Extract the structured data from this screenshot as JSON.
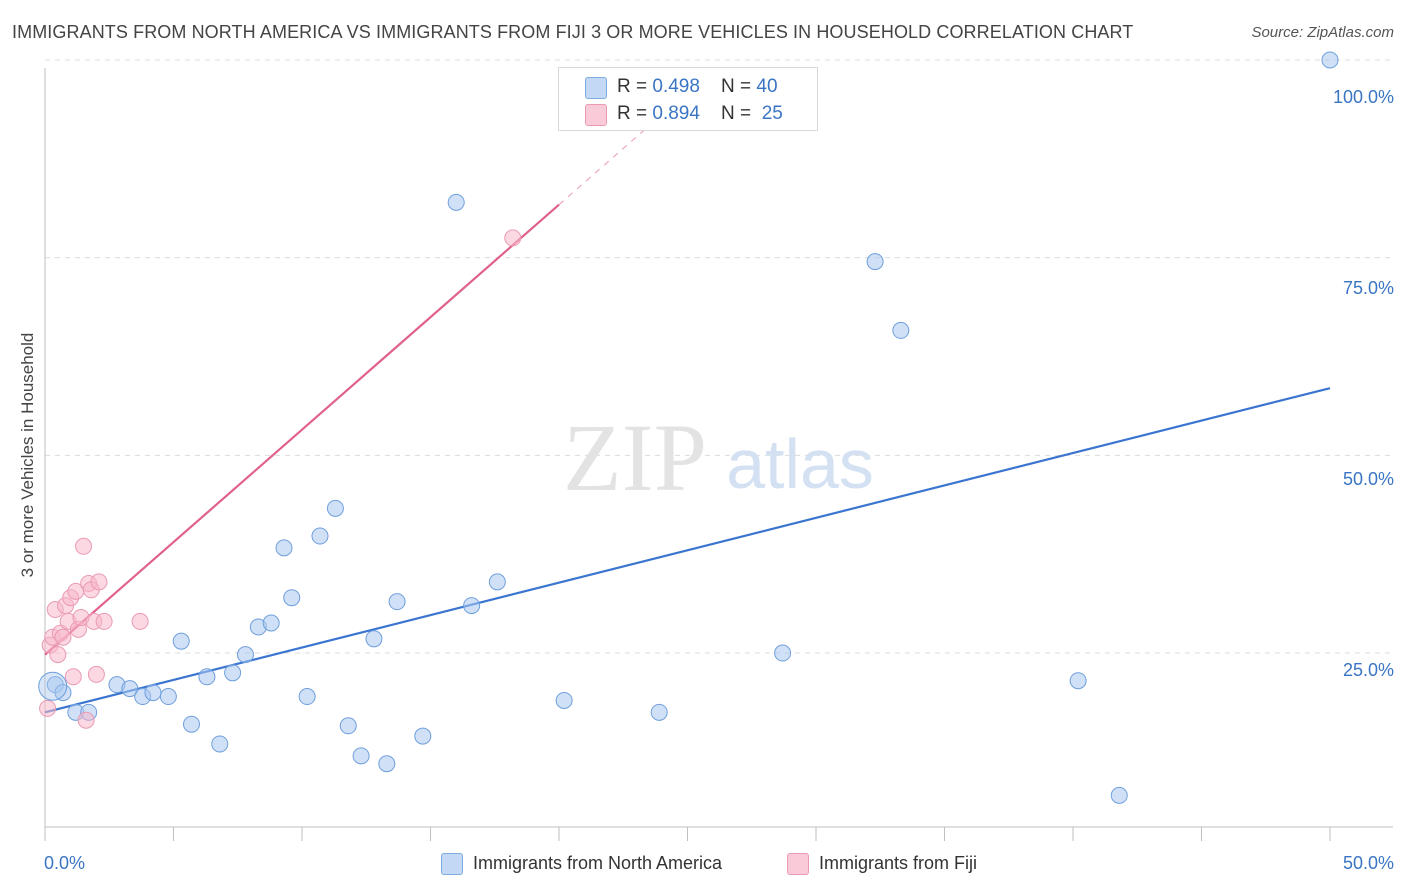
{
  "title": "IMMIGRANTS FROM NORTH AMERICA VS IMMIGRANTS FROM FIJI 3 OR MORE VEHICLES IN HOUSEHOLD CORRELATION CHART",
  "source": "Source: ZipAtlas.com",
  "watermark": {
    "zip": "ZIP",
    "atlas": "atlas"
  },
  "legend": {
    "rows": [
      {
        "r_label": "R = ",
        "r_value": "0.498",
        "n_label": "N = ",
        "n_value": "40",
        "color": "#a9c8f0"
      },
      {
        "r_label": "R = ",
        "r_value": "0.894",
        "n_label": "N = ",
        "n_value": "25",
        "color": "#f7b8cb"
      }
    ]
  },
  "chart_data": {
    "type": "scatter",
    "xlabel": "",
    "ylabel": "3 or more Vehicles in Household",
    "xlim": [
      0,
      50
    ],
    "ylim": [
      3,
      100
    ],
    "x_tick_labels": [
      "0.0%",
      "50.0%"
    ],
    "y_ticks": [
      25,
      50,
      75,
      100
    ],
    "y_tick_labels": [
      "25.0%",
      "50.0%",
      "75.0%",
      "100.0%"
    ],
    "grid": true,
    "series": [
      {
        "name": "Immigrants from North America",
        "color": "#3a75d0",
        "fill": "#a9c8f0",
        "points": [
          [
            0.4,
            21.0
          ],
          [
            0.7,
            20.0
          ],
          [
            1.2,
            17.5
          ],
          [
            1.7,
            17.5
          ],
          [
            2.8,
            21.0
          ],
          [
            3.3,
            20.5
          ],
          [
            3.8,
            19.5
          ],
          [
            4.2,
            20.0
          ],
          [
            4.8,
            19.5
          ],
          [
            5.3,
            26.5
          ],
          [
            5.7,
            16.0
          ],
          [
            6.3,
            22.0
          ],
          [
            6.8,
            13.5
          ],
          [
            7.3,
            22.5
          ],
          [
            7.8,
            24.8
          ],
          [
            8.3,
            28.3
          ],
          [
            8.8,
            28.8
          ],
          [
            9.3,
            38.3
          ],
          [
            9.6,
            32.0
          ],
          [
            10.2,
            19.5
          ],
          [
            10.7,
            39.8
          ],
          [
            11.3,
            43.3
          ],
          [
            11.8,
            15.8
          ],
          [
            12.3,
            12.0
          ],
          [
            12.8,
            26.8
          ],
          [
            13.3,
            11.0
          ],
          [
            13.7,
            31.5
          ],
          [
            14.7,
            14.5
          ],
          [
            16.0,
            82.0
          ],
          [
            16.6,
            31.0
          ],
          [
            17.6,
            34.0
          ],
          [
            20.2,
            19.0
          ],
          [
            23.9,
            17.5
          ],
          [
            28.7,
            25.0
          ],
          [
            32.3,
            74.5
          ],
          [
            33.3,
            65.8
          ],
          [
            40.2,
            21.5
          ],
          [
            41.8,
            7.0
          ],
          [
            50.0,
            100.0
          ]
        ],
        "trend": {
          "x": [
            0,
            50
          ],
          "y": [
            17.5,
            58.5
          ]
        }
      },
      {
        "name": "Immigrants from Fiji",
        "color": "#e0618a",
        "fill": "#f7b8cb",
        "points": [
          [
            0.1,
            18.0
          ],
          [
            0.2,
            26.0
          ],
          [
            0.3,
            27.0
          ],
          [
            0.4,
            30.5
          ],
          [
            0.5,
            24.8
          ],
          [
            0.6,
            27.5
          ],
          [
            0.7,
            27.0
          ],
          [
            0.8,
            31.0
          ],
          [
            0.9,
            29.0
          ],
          [
            1.0,
            32.0
          ],
          [
            1.1,
            22.0
          ],
          [
            1.2,
            32.8
          ],
          [
            1.3,
            28.0
          ],
          [
            1.4,
            29.5
          ],
          [
            1.5,
            38.5
          ],
          [
            1.6,
            16.5
          ],
          [
            1.7,
            33.8
          ],
          [
            1.8,
            33.0
          ],
          [
            1.9,
            29.0
          ],
          [
            2.0,
            22.3
          ],
          [
            2.1,
            34.0
          ],
          [
            2.3,
            29.0
          ],
          [
            3.7,
            29.0
          ],
          [
            18.2,
            77.5
          ]
        ],
        "trend": {
          "x": [
            0,
            20
          ],
          "y": [
            24.8,
            81.7
          ]
        },
        "trend_extension": {
          "x": [
            20,
            24.5
          ],
          "y": [
            81.7,
            94.5
          ]
        }
      }
    ]
  }
}
